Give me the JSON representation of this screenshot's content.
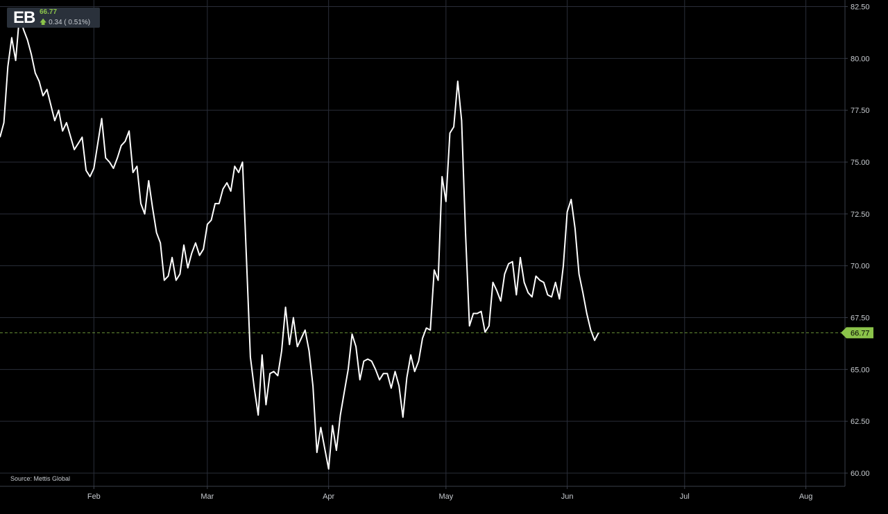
{
  "ticker": {
    "symbol": "EB",
    "price": "66.77",
    "change": "0.34 ( 0.51%)",
    "direction_icon": "arrow-up-icon"
  },
  "source": "Source: Mettis Global",
  "colors": {
    "background": "#000000",
    "grid": "#2a2e39",
    "line": "#ffffff",
    "accent": "#8bc34a",
    "axis_text": "#c8ccd1"
  },
  "chart_data": {
    "type": "line",
    "title": "",
    "xlabel": "",
    "ylabel": "",
    "ylim": [
      59.5,
      82.5
    ],
    "y_ticks": [
      "82.50",
      "80.00",
      "77.50",
      "75.00",
      "72.50",
      "70.00",
      "67.50",
      "65.00",
      "62.50",
      "60.00"
    ],
    "x_ticks": [
      {
        "label": "Feb",
        "date": "2024-02-01"
      },
      {
        "label": "Mar",
        "date": "2024-03-01"
      },
      {
        "label": "Apr",
        "date": "2024-04-01"
      },
      {
        "label": "May",
        "date": "2024-05-01"
      },
      {
        "label": "Jun",
        "date": "2024-06-01"
      },
      {
        "label": "Jul",
        "date": "2024-07-01"
      },
      {
        "label": "Aug",
        "date": "2024-08-01"
      }
    ],
    "x_range": [
      "2024-01-08",
      "2024-08-11"
    ],
    "last_value_label": "66.77",
    "last_value": 66.77,
    "grid": true,
    "series": [
      {
        "name": "",
        "points": [
          [
            "2024-01-08",
            76.2
          ],
          [
            "2024-01-09",
            76.9
          ],
          [
            "2024-01-10",
            79.6
          ],
          [
            "2024-01-11",
            81.0
          ],
          [
            "2024-01-12",
            79.9
          ],
          [
            "2024-01-13",
            82.1
          ],
          [
            "2024-01-14",
            81.4
          ],
          [
            "2024-01-15",
            80.9
          ],
          [
            "2024-01-16",
            80.2
          ],
          [
            "2024-01-17",
            79.3
          ],
          [
            "2024-01-18",
            78.9
          ],
          [
            "2024-01-19",
            78.2
          ],
          [
            "2024-01-20",
            78.5
          ],
          [
            "2024-01-22",
            77.0
          ],
          [
            "2024-01-23",
            77.5
          ],
          [
            "2024-01-24",
            76.5
          ],
          [
            "2024-01-25",
            76.9
          ],
          [
            "2024-01-27",
            75.6
          ],
          [
            "2024-01-28",
            75.9
          ],
          [
            "2024-01-29",
            76.2
          ],
          [
            "2024-01-30",
            74.6
          ],
          [
            "2024-01-31",
            74.3
          ],
          [
            "2024-02-01",
            74.7
          ],
          [
            "2024-02-03",
            77.1
          ],
          [
            "2024-02-04",
            75.2
          ],
          [
            "2024-02-05",
            75.0
          ],
          [
            "2024-02-06",
            74.7
          ],
          [
            "2024-02-07",
            75.2
          ],
          [
            "2024-02-08",
            75.8
          ],
          [
            "2024-02-09",
            76.0
          ],
          [
            "2024-02-10",
            76.5
          ],
          [
            "2024-02-11",
            74.5
          ],
          [
            "2024-02-12",
            74.8
          ],
          [
            "2024-02-13",
            73.0
          ],
          [
            "2024-02-14",
            72.5
          ],
          [
            "2024-02-15",
            74.1
          ],
          [
            "2024-02-16",
            72.8
          ],
          [
            "2024-02-17",
            71.6
          ],
          [
            "2024-02-18",
            71.1
          ],
          [
            "2024-02-19",
            69.3
          ],
          [
            "2024-02-20",
            69.5
          ],
          [
            "2024-02-21",
            70.4
          ],
          [
            "2024-02-22",
            69.3
          ],
          [
            "2024-02-23",
            69.6
          ],
          [
            "2024-02-24",
            71.0
          ],
          [
            "2024-02-25",
            69.9
          ],
          [
            "2024-02-26",
            70.6
          ],
          [
            "2024-02-27",
            71.1
          ],
          [
            "2024-02-28",
            70.5
          ],
          [
            "2024-02-29",
            70.8
          ],
          [
            "2024-03-01",
            72.0
          ],
          [
            "2024-03-02",
            72.2
          ],
          [
            "2024-03-03",
            73.0
          ],
          [
            "2024-03-04",
            73.0
          ],
          [
            "2024-03-05",
            73.7
          ],
          [
            "2024-03-06",
            74.0
          ],
          [
            "2024-03-07",
            73.6
          ],
          [
            "2024-03-08",
            74.8
          ],
          [
            "2024-03-09",
            74.5
          ],
          [
            "2024-03-10",
            75.0
          ],
          [
            "2024-03-11",
            70.3
          ],
          [
            "2024-03-12",
            65.6
          ],
          [
            "2024-03-13",
            64.1
          ],
          [
            "2024-03-14",
            62.8
          ],
          [
            "2024-03-15",
            65.7
          ],
          [
            "2024-03-16",
            63.3
          ],
          [
            "2024-03-17",
            64.8
          ],
          [
            "2024-03-18",
            64.9
          ],
          [
            "2024-03-19",
            64.7
          ],
          [
            "2024-03-20",
            65.9
          ],
          [
            "2024-03-21",
            68.0
          ],
          [
            "2024-03-22",
            66.2
          ],
          [
            "2024-03-23",
            67.5
          ],
          [
            "2024-03-24",
            66.1
          ],
          [
            "2024-03-25",
            66.5
          ],
          [
            "2024-03-26",
            66.9
          ],
          [
            "2024-03-27",
            65.9
          ],
          [
            "2024-03-28",
            64.2
          ],
          [
            "2024-03-29",
            61.0
          ],
          [
            "2024-03-30",
            62.2
          ],
          [
            "2024-03-31",
            61.2
          ],
          [
            "2024-04-01",
            60.2
          ],
          [
            "2024-04-02",
            62.3
          ],
          [
            "2024-04-03",
            61.1
          ],
          [
            "2024-04-04",
            62.8
          ],
          [
            "2024-04-05",
            63.9
          ],
          [
            "2024-04-06",
            65.0
          ],
          [
            "2024-04-07",
            66.7
          ],
          [
            "2024-04-08",
            66.1
          ],
          [
            "2024-04-09",
            64.5
          ],
          [
            "2024-04-10",
            65.4
          ],
          [
            "2024-04-11",
            65.5
          ],
          [
            "2024-04-12",
            65.4
          ],
          [
            "2024-04-13",
            65.0
          ],
          [
            "2024-04-14",
            64.5
          ],
          [
            "2024-04-15",
            64.8
          ],
          [
            "2024-04-16",
            64.8
          ],
          [
            "2024-04-17",
            64.1
          ],
          [
            "2024-04-18",
            64.9
          ],
          [
            "2024-04-19",
            64.2
          ],
          [
            "2024-04-20",
            62.7
          ],
          [
            "2024-04-21",
            64.6
          ],
          [
            "2024-04-22",
            65.7
          ],
          [
            "2024-04-23",
            64.9
          ],
          [
            "2024-04-24",
            65.4
          ],
          [
            "2024-04-25",
            66.5
          ],
          [
            "2024-04-26",
            67.0
          ],
          [
            "2024-04-27",
            66.9
          ],
          [
            "2024-04-28",
            69.8
          ],
          [
            "2024-04-29",
            69.3
          ],
          [
            "2024-04-30",
            74.3
          ],
          [
            "2024-05-01",
            73.1
          ],
          [
            "2024-05-02",
            76.4
          ],
          [
            "2024-05-03",
            76.7
          ],
          [
            "2024-05-04",
            78.9
          ],
          [
            "2024-05-05",
            77.0
          ],
          [
            "2024-05-06",
            71.6
          ],
          [
            "2024-05-07",
            67.1
          ],
          [
            "2024-05-08",
            67.7
          ],
          [
            "2024-05-09",
            67.7
          ],
          [
            "2024-05-10",
            67.8
          ],
          [
            "2024-05-11",
            66.8
          ],
          [
            "2024-05-12",
            67.1
          ],
          [
            "2024-05-13",
            69.2
          ],
          [
            "2024-05-14",
            68.8
          ],
          [
            "2024-05-15",
            68.3
          ],
          [
            "2024-05-16",
            69.6
          ],
          [
            "2024-05-17",
            70.1
          ],
          [
            "2024-05-18",
            70.2
          ],
          [
            "2024-05-19",
            68.6
          ],
          [
            "2024-05-20",
            70.4
          ],
          [
            "2024-05-21",
            69.2
          ],
          [
            "2024-05-22",
            68.7
          ],
          [
            "2024-05-23",
            68.5
          ],
          [
            "2024-05-24",
            69.5
          ],
          [
            "2024-05-25",
            69.3
          ],
          [
            "2024-05-26",
            69.2
          ],
          [
            "2024-05-27",
            68.6
          ],
          [
            "2024-05-28",
            68.5
          ],
          [
            "2024-05-29",
            69.2
          ],
          [
            "2024-05-30",
            68.4
          ],
          [
            "2024-05-31",
            70.0
          ],
          [
            "2024-06-01",
            72.6
          ],
          [
            "2024-06-02",
            73.2
          ],
          [
            "2024-06-03",
            71.8
          ],
          [
            "2024-06-04",
            69.6
          ],
          [
            "2024-06-05",
            68.7
          ],
          [
            "2024-06-06",
            67.7
          ],
          [
            "2024-06-07",
            66.9
          ],
          [
            "2024-06-08",
            66.4
          ],
          [
            "2024-06-09",
            66.77
          ]
        ]
      }
    ]
  }
}
